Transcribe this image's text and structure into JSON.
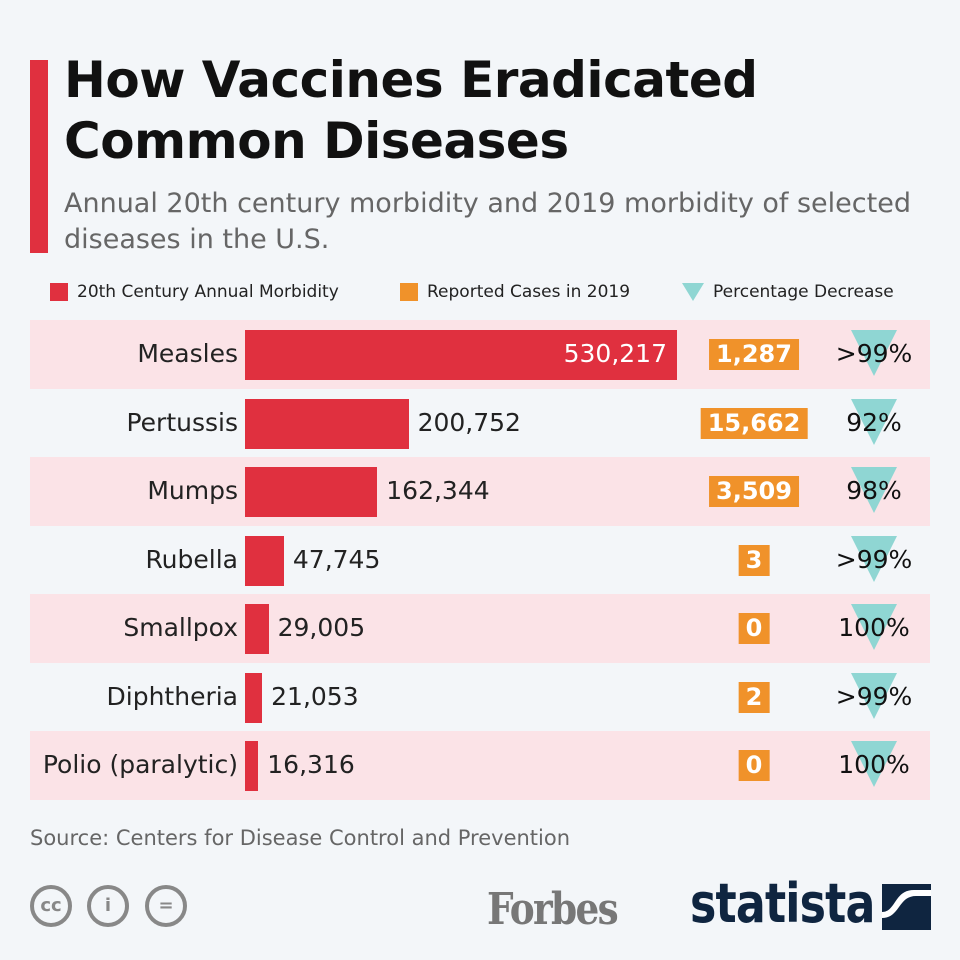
{
  "title": "How Vaccines Eradicated Common Diseases",
  "subtitle": "Annual 20th century morbidity and 2019 morbidity of selected diseases in the U.S.",
  "colors": {
    "bar": "#e0303f",
    "box": "#f0922a",
    "triangle": "#8fd6d3",
    "stripe": "#fbe3e7"
  },
  "source": "Source: Centers for Disease Control and Prevention",
  "logos": {
    "forbes": "Forbes",
    "statista": "statista",
    "license_icons": [
      "cc-icon",
      "attribution-icon",
      "no-derivatives-icon"
    ]
  },
  "chart_data": {
    "type": "bar",
    "orientation": "horizontal",
    "legend": [
      "20th Century Annual Morbidity",
      "Reported Cases in 2019",
      "Percentage Decrease"
    ],
    "legend_placement": "top",
    "categories": [
      "Measles",
      "Pertussis",
      "Mumps",
      "Rubella",
      "Smallpox",
      "Diphtheria",
      "Polio (paralytic)"
    ],
    "series": [
      {
        "name": "20th Century Annual Morbidity",
        "values": [
          530217,
          200752,
          162344,
          47745,
          29005,
          21053,
          16316
        ],
        "labels": [
          "530,217",
          "200,752",
          "162,344",
          "47,745",
          "29,005",
          "21,053",
          "16,316"
        ]
      },
      {
        "name": "Reported Cases in 2019",
        "values": [
          1287,
          15662,
          3509,
          3,
          0,
          2,
          0
        ],
        "labels": [
          "1,287",
          "15,662",
          "3,509",
          "3",
          "0",
          "2",
          "0"
        ]
      },
      {
        "name": "Percentage Decrease",
        "labels": [
          ">99%",
          "92%",
          "98%",
          ">99%",
          "100%",
          ">99%",
          "100%"
        ]
      }
    ]
  }
}
